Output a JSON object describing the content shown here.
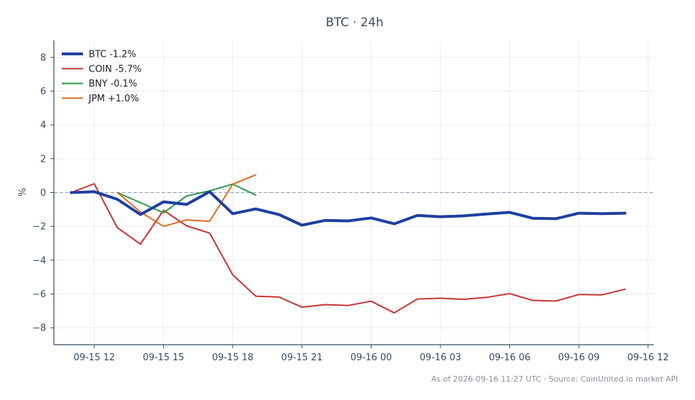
{
  "chart_data": {
    "type": "line",
    "title": "BTC · 24h",
    "ylabel": "%",
    "xlabel": "",
    "ylim": [
      -9,
      9
    ],
    "yticks": [
      -8,
      -6,
      -4,
      -2,
      0,
      2,
      4,
      6,
      8
    ],
    "xticks": [
      "09-15 12",
      "09-15 15",
      "09-15 18",
      "09-15 21",
      "09-16 00",
      "09-16 03",
      "09-16 06",
      "09-16 09",
      "09-16 12"
    ],
    "x": [
      "09-15 11",
      "09-15 12",
      "09-15 13",
      "09-15 14",
      "09-15 15",
      "09-15 16",
      "09-15 17",
      "09-15 18",
      "09-15 19",
      "09-15 20",
      "09-15 21",
      "09-15 22",
      "09-15 23",
      "09-16 00",
      "09-16 01",
      "09-16 02",
      "09-16 03",
      "09-16 04",
      "09-16 05",
      "09-16 06",
      "09-16 07",
      "09-16 08",
      "09-16 09",
      "09-16 10",
      "09-16 11"
    ],
    "grid": true,
    "zero_line": true,
    "legend": "top-left",
    "series": [
      {
        "name": "BTC -1.2%",
        "color": "#1f3fa0",
        "values": [
          0.0,
          0.05,
          -0.4,
          -1.3,
          -0.55,
          -0.7,
          0.05,
          -1.25,
          -0.97,
          -1.3,
          -1.93,
          -1.65,
          -1.68,
          -1.5,
          -1.85,
          -1.35,
          -1.43,
          -1.38,
          -1.27,
          -1.17,
          -1.52,
          -1.55,
          -1.22,
          -1.25,
          -1.22
        ]
      },
      {
        "name": "COIN -5.7%",
        "color": "#c93434",
        "values": [
          0.0,
          0.52,
          -2.08,
          -3.05,
          -1.05,
          -1.97,
          -2.4,
          -4.87,
          -6.13,
          -6.18,
          -6.78,
          -6.63,
          -6.68,
          -6.43,
          -7.12,
          -6.3,
          -6.25,
          -6.32,
          -6.2,
          -5.98,
          -6.38,
          -6.42,
          -6.03,
          -6.05,
          -5.72
        ]
      },
      {
        "name": "BNY -0.1%",
        "color": "#2a9a4a",
        "values": [
          null,
          null,
          0.0,
          null,
          -1.2,
          -0.2,
          0.1,
          0.5,
          -0.15,
          null,
          null,
          null,
          null,
          null,
          null,
          null,
          null,
          null,
          null,
          null,
          null,
          null,
          null,
          null,
          null
        ]
      },
      {
        "name": "JPM +1.0%",
        "color": "#e06a1e",
        "values": [
          null,
          null,
          0.0,
          -1.15,
          -2.0,
          -1.62,
          -1.7,
          0.5,
          1.05,
          null,
          null,
          null,
          null,
          null,
          null,
          null,
          null,
          null,
          null,
          null,
          null,
          null,
          null,
          null,
          null
        ]
      }
    ]
  },
  "footer": "As of 2026-09-16 11:27 UTC · Source: CoinUnited.io market API"
}
